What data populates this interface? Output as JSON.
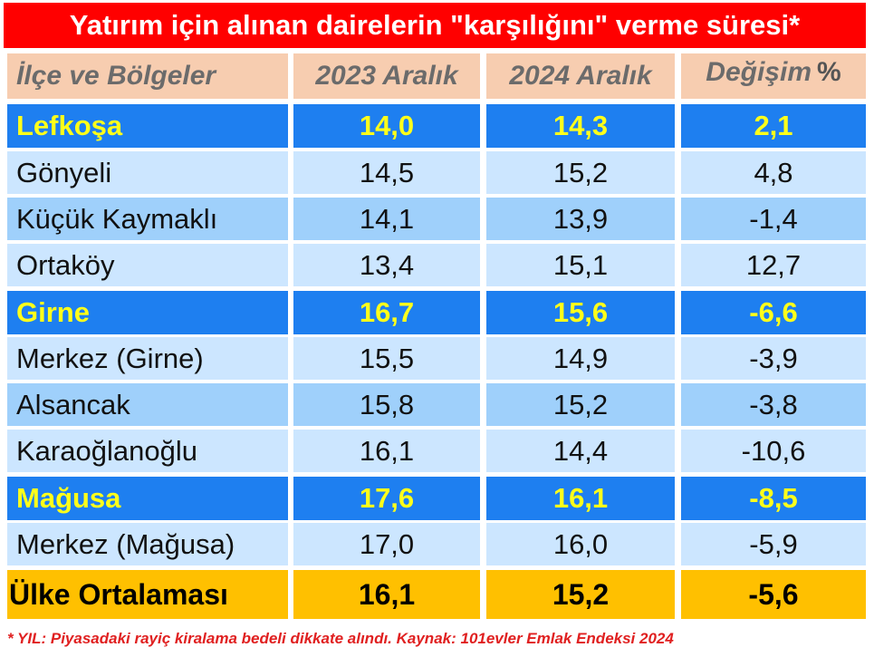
{
  "title": "Yatırım için alınan dairelerin \"karşılığını\" verme süresi*",
  "header": {
    "col_region": "İlçe ve Bölgeler",
    "col_2023": "2023 Aralık",
    "col_2024": "2024 Aralık",
    "col_change": "Değişim",
    "col_change_unit": "%"
  },
  "rows": [
    {
      "name": "Lefkoşa",
      "v2023": "14,0",
      "v2024": "14,3",
      "change": "2,1",
      "type": "region"
    },
    {
      "name": "Gönyeli",
      "v2023": "14,5",
      "v2024": "15,2",
      "change": "4,8",
      "type": "light"
    },
    {
      "name": "Küçük Kaymaklı",
      "v2023": "14,1",
      "v2024": "13,9",
      "change": "-1,4",
      "type": "mid"
    },
    {
      "name": "Ortaköy",
      "v2023": "13,4",
      "v2024": "15,1",
      "change": "12,7",
      "type": "light"
    },
    {
      "name": "Girne",
      "v2023": "16,7",
      "v2024": "15,6",
      "change": "-6,6",
      "type": "region"
    },
    {
      "name": "Merkez (Girne)",
      "v2023": "15,5",
      "v2024": "14,9",
      "change": "-3,9",
      "type": "light"
    },
    {
      "name": "Alsancak",
      "v2023": "15,8",
      "v2024": "15,2",
      "change": "-3,8",
      "type": "mid"
    },
    {
      "name": "Karaoğlanoğlu",
      "v2023": "16,1",
      "v2024": "14,4",
      "change": "-10,6",
      "type": "light"
    },
    {
      "name": "Mağusa",
      "v2023": "17,6",
      "v2024": "16,1",
      "change": "-8,5",
      "type": "region"
    },
    {
      "name": "Merkez (Mağusa)",
      "v2023": "17,0",
      "v2024": "16,0",
      "change": "-5,9",
      "type": "light"
    },
    {
      "name": "Ülke Ortalaması",
      "v2023": "16,1",
      "v2024": "15,2",
      "change": "-5,6",
      "type": "total"
    }
  ],
  "footnote": "* YIL: Piyasadaki rayiç kiralama bedeli dikkate alındı. Kaynak: 101evler Emlak Endeksi 2024",
  "colors": {
    "title_bg": "#ff0000",
    "header_bg": "#f7cdb0",
    "region_bg": "#1e7ff0",
    "region_text": "#ffff1a",
    "row_light": "#cce6ff",
    "row_mid": "#9fd0fb",
    "total_bg": "#ffc000",
    "footnote": "#e02020"
  }
}
